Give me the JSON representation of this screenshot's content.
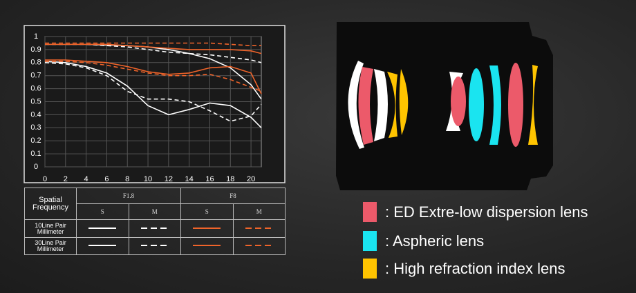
{
  "chart_data": {
    "type": "line",
    "x": [
      0,
      2,
      4,
      6,
      8,
      10,
      12,
      14,
      16,
      18,
      20,
      21
    ],
    "xlim": [
      0,
      21
    ],
    "xticks": [
      0,
      2,
      4,
      6,
      8,
      10,
      12,
      14,
      16,
      18,
      20
    ],
    "ylim": [
      0,
      1
    ],
    "yticks": [
      0,
      0.1,
      0.2,
      0.3,
      0.4,
      0.5,
      0.6,
      0.7,
      0.8,
      0.9,
      1
    ],
    "grid": true,
    "series": [
      {
        "color": "#ffffff",
        "dash": false,
        "values": [
          0.94,
          0.94,
          0.94,
          0.935,
          0.93,
          0.92,
          0.9,
          0.87,
          0.83,
          0.76,
          0.63,
          0.52
        ]
      },
      {
        "color": "#ffffff",
        "dash": true,
        "values": [
          0.94,
          0.94,
          0.94,
          0.93,
          0.92,
          0.9,
          0.88,
          0.87,
          0.86,
          0.84,
          0.82,
          0.8
        ]
      },
      {
        "color": "#f0642a",
        "dash": false,
        "values": [
          0.94,
          0.94,
          0.94,
          0.94,
          0.93,
          0.92,
          0.91,
          0.9,
          0.9,
          0.9,
          0.89,
          0.87
        ]
      },
      {
        "color": "#f0642a",
        "dash": true,
        "values": [
          0.95,
          0.95,
          0.95,
          0.95,
          0.95,
          0.95,
          0.95,
          0.95,
          0.95,
          0.94,
          0.93,
          0.93
        ]
      },
      {
        "color": "#ffffff",
        "dash": false,
        "values": [
          0.81,
          0.8,
          0.77,
          0.72,
          0.62,
          0.47,
          0.4,
          0.44,
          0.49,
          0.47,
          0.38,
          0.3
        ]
      },
      {
        "color": "#ffffff",
        "dash": true,
        "values": [
          0.8,
          0.79,
          0.76,
          0.7,
          0.58,
          0.52,
          0.52,
          0.5,
          0.43,
          0.35,
          0.39,
          0.48
        ]
      },
      {
        "color": "#f0642a",
        "dash": false,
        "values": [
          0.82,
          0.82,
          0.81,
          0.8,
          0.77,
          0.73,
          0.71,
          0.72,
          0.76,
          0.77,
          0.72,
          0.56
        ]
      },
      {
        "color": "#f0642a",
        "dash": true,
        "values": [
          0.81,
          0.81,
          0.8,
          0.78,
          0.75,
          0.72,
          0.7,
          0.7,
          0.71,
          0.67,
          0.61,
          0.58
        ]
      }
    ],
    "legend_table": {
      "header": "Spatial Frequency",
      "apertures": [
        "F1.8",
        "F8"
      ],
      "modes": [
        "S",
        "M"
      ],
      "frequencies": [
        "10Line Pair Millimeter",
        "30Line Pair Millimeter"
      ]
    }
  },
  "lens_legend": [
    {
      "color": "#ec5a6a",
      "label": ": ED Extre-low dispersion lens"
    },
    {
      "color": "#1ae4f0",
      "label": ": Aspheric lens"
    },
    {
      "color": "#ffc400",
      "label": ": High refraction index lens"
    }
  ]
}
